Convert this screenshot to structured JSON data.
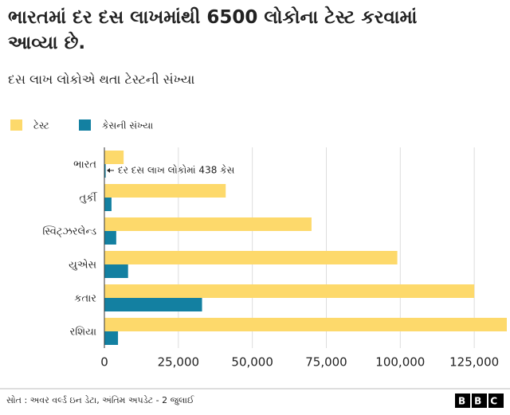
{
  "chart_data": {
    "type": "grouped-hbar",
    "title": "ભારતમાં દર દસ લાખમાંથી 6500 લોકોના ટેસ્ટ કરવામાં આવ્યા છે.",
    "subtitle": "દસ લાખ લોકોએ થતા ટેસ્ટની સંખ્યા",
    "categories": [
      "ભારત",
      "તુર્કી",
      "સ્વિટ્ઝરલેન્ડ",
      "યુએસ",
      "કતાર",
      "રશિયા"
    ],
    "series": [
      {
        "name": "ટેસ્ટ",
        "color": "#fdd96b",
        "values": [
          6500,
          41000,
          70000,
          99000,
          125000,
          136000
        ]
      },
      {
        "name": "કેસની સંખ્યા",
        "color": "#1380a1",
        "values": [
          438,
          2400,
          4000,
          8000,
          33000,
          4600
        ]
      }
    ],
    "xlim": [
      0,
      136000
    ],
    "xticks": [
      0,
      {
        "value": 25000,
        "label": "25,000"
      },
      {
        "value": 50000,
        "label": "50,000"
      },
      {
        "value": 75000,
        "label": "75,000"
      },
      {
        "value": 100000,
        "label": "100,000"
      },
      {
        "value": 125000,
        "label": "125,000"
      }
    ],
    "grid": true,
    "legend": "top-left",
    "annotation": "દર દસ લાખ લોકોમાં 438 કેસ",
    "source": "સોત : અવર વર્લ્ડ ઇન ડેટા, અંતિમ અપડેટ - 2 જુલાઈ",
    "logo": "BBC"
  }
}
